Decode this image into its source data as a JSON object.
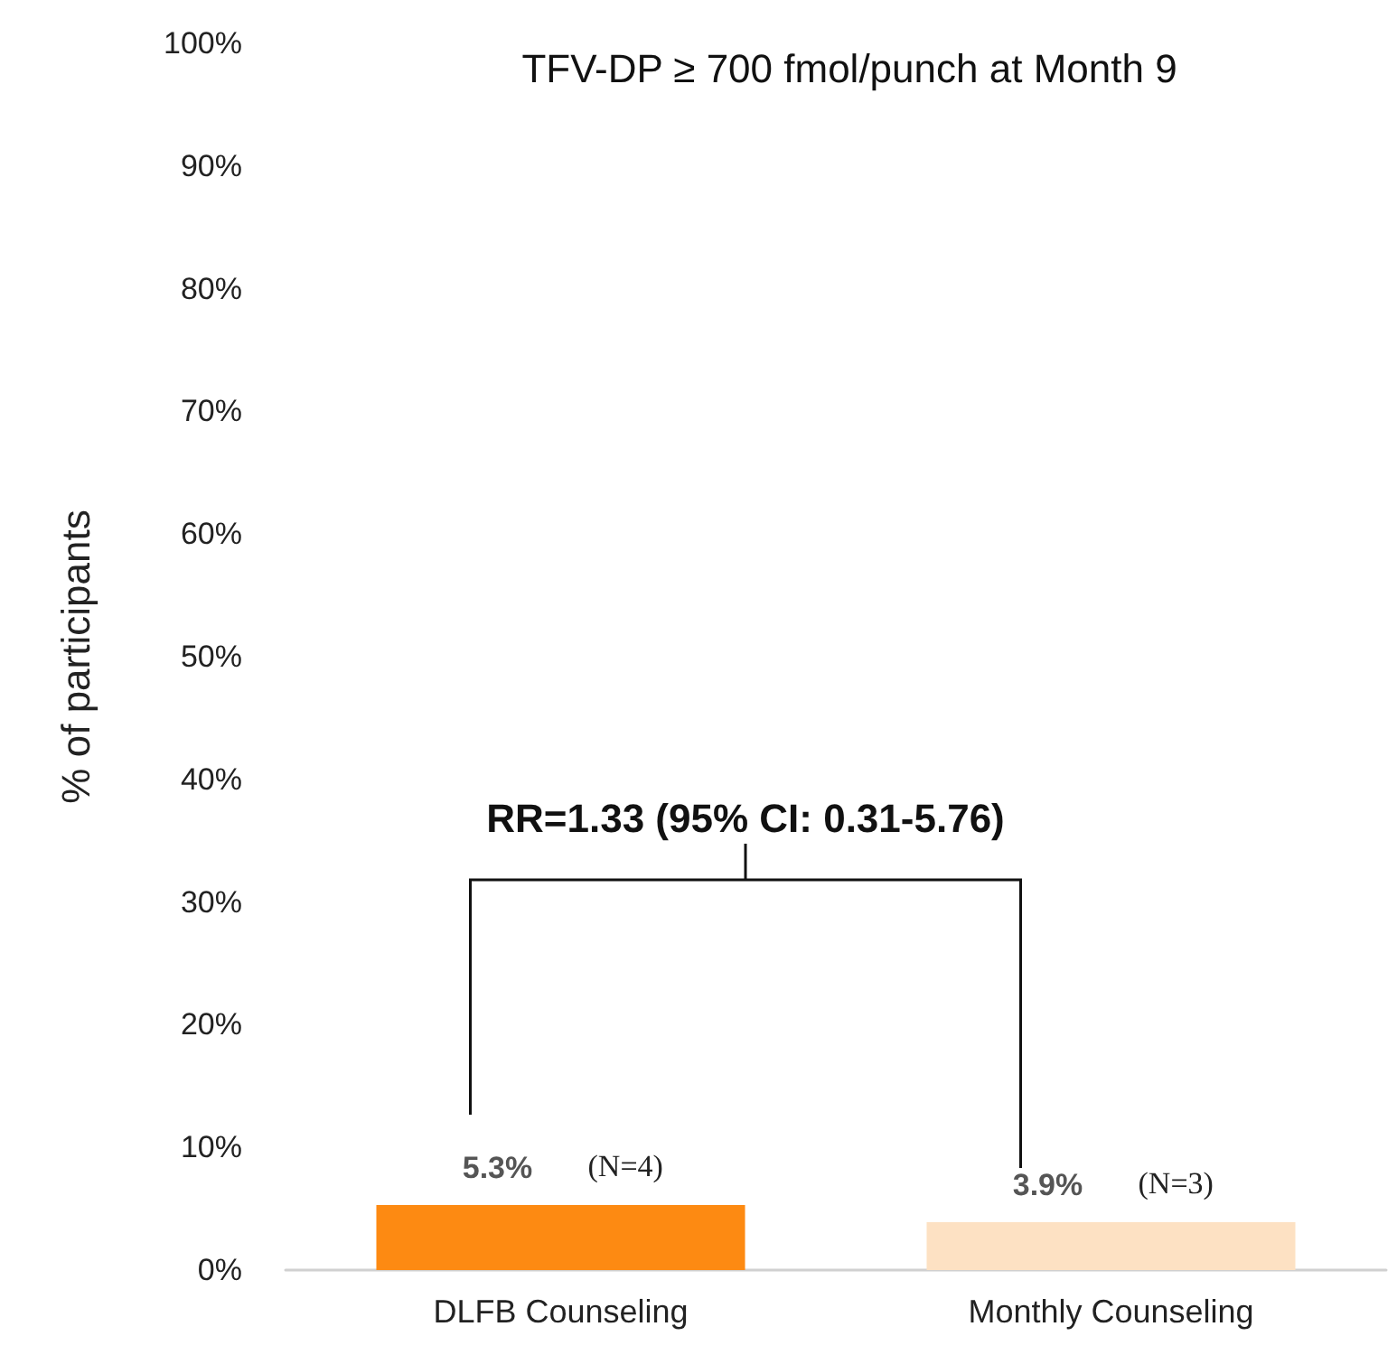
{
  "chart_data": {
    "type": "bar",
    "title": "TFV-DP ≥ 700 fmol/punch at Month 9",
    "ylabel": "% of participants",
    "categories": [
      "DLFB Counseling",
      "Monthly Counseling"
    ],
    "values": [
      5.3,
      3.9
    ],
    "colors": [
      "#fd8a12",
      "#fde1c3"
    ],
    "value_labels": [
      "5.3%",
      "3.9%"
    ],
    "ylim": [
      0,
      100
    ],
    "yticks": [
      {
        "value": 0,
        "label": "0%"
      },
      {
        "value": 10,
        "label": "10%"
      },
      {
        "value": 20,
        "label": "20%"
      },
      {
        "value": 30,
        "label": "30%"
      },
      {
        "value": 40,
        "label": "40%"
      },
      {
        "value": 50,
        "label": "50%"
      },
      {
        "value": 60,
        "label": "60%"
      },
      {
        "value": 70,
        "label": "70%"
      },
      {
        "value": 80,
        "label": "80%"
      },
      {
        "value": 90,
        "label": "90%"
      },
      {
        "value": 100,
        "label": "100%"
      }
    ],
    "grid": false,
    "annotations": [
      "RR=1.33 (95% CI: 0.31-5.76)",
      {
        "text": "(N=4)",
        "x": "DLFB Counseling",
        "y": 5.3
      },
      {
        "text": "(N=3)",
        "x": "Monthly Counseling",
        "y": 3.9
      }
    ]
  }
}
